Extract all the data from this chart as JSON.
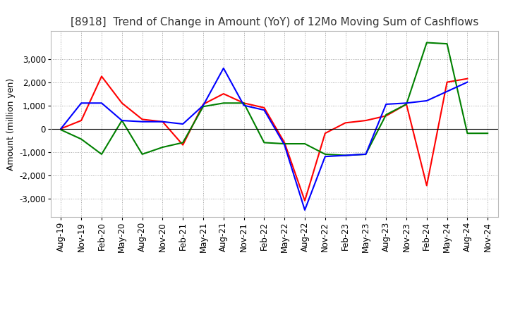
{
  "title": "[8918]  Trend of Change in Amount (YoY) of 12Mo Moving Sum of Cashflows",
  "ylabel": "Amount (million yen)",
  "x_labels": [
    "Aug-19",
    "Nov-19",
    "Feb-20",
    "May-20",
    "Aug-20",
    "Nov-20",
    "Feb-21",
    "May-21",
    "Aug-21",
    "Nov-21",
    "Feb-22",
    "May-22",
    "Aug-22",
    "Nov-22",
    "Feb-23",
    "May-23",
    "Aug-23",
    "Nov-23",
    "Feb-24",
    "May-24",
    "Aug-24",
    "Nov-24"
  ],
  "operating_cashflow": [
    0,
    350,
    2250,
    1100,
    400,
    300,
    -700,
    1050,
    1500,
    1100,
    900,
    -600,
    -3100,
    -200,
    250,
    350,
    550,
    1050,
    -2450,
    2000,
    2150,
    null
  ],
  "investing_cashflow": [
    -50,
    -450,
    -1100,
    350,
    -1100,
    -800,
    -600,
    950,
    1100,
    1100,
    -600,
    -650,
    -650,
    -1100,
    -1150,
    -1100,
    600,
    1050,
    3700,
    3650,
    -200,
    -200
  ],
  "free_cashflow": [
    0,
    1100,
    1100,
    350,
    300,
    300,
    200,
    1000,
    2600,
    1000,
    800,
    -700,
    -3500,
    -1200,
    -1150,
    -1100,
    1050,
    1100,
    1200,
    1600,
    2000,
    null
  ],
  "ylim": [
    -3800,
    4200
  ],
  "yticks": [
    -3000,
    -2000,
    -1000,
    0,
    1000,
    2000,
    3000
  ],
  "colors": {
    "operating": "#ff0000",
    "investing": "#008000",
    "free": "#0000ff"
  },
  "background_color": "#ffffff",
  "grid_color": "#999999",
  "title_fontsize": 11,
  "label_fontsize": 9,
  "tick_fontsize": 8.5
}
